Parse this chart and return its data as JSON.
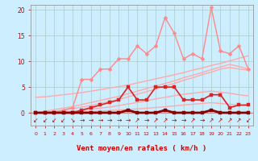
{
  "x": [
    0,
    1,
    2,
    3,
    4,
    5,
    6,
    7,
    8,
    9,
    10,
    11,
    12,
    13,
    14,
    15,
    16,
    17,
    18,
    19,
    20,
    21,
    22,
    23
  ],
  "background_color": "#cceeff",
  "grid_color": "#aacccc",
  "xlabel": "Vent moyen/en rafales ( km/h )",
  "xlabel_color": "#cc0000",
  "tick_color": "#cc0000",
  "ylim": [
    -2.5,
    21
  ],
  "xlim": [
    -0.5,
    23.5
  ],
  "yticks": [
    0,
    5,
    10,
    15,
    20
  ],
  "ytick_labels": [
    "0",
    "5",
    "10",
    "15",
    "20"
  ],
  "lines": [
    {
      "y": [
        3.0,
        3.1,
        3.3,
        3.5,
        3.7,
        3.9,
        4.2,
        4.5,
        4.8,
        5.1,
        5.4,
        5.8,
        6.2,
        6.6,
        7.0,
        7.4,
        7.8,
        8.3,
        8.7,
        9.2,
        9.6,
        10.1,
        10.6,
        11.1
      ],
      "color": "#ffaaaa",
      "linewidth": 1.0,
      "marker": null,
      "zorder": 2
    },
    {
      "y": [
        0.0,
        0.3,
        0.6,
        0.9,
        1.2,
        1.6,
        2.0,
        2.4,
        2.8,
        3.2,
        3.7,
        4.2,
        4.7,
        5.2,
        5.7,
        6.2,
        6.8,
        7.3,
        7.8,
        8.4,
        8.9,
        9.4,
        9.0,
        8.5
      ],
      "color": "#ffaaaa",
      "linewidth": 1.0,
      "marker": null,
      "zorder": 2
    },
    {
      "y": [
        0.0,
        0.1,
        0.3,
        0.5,
        0.8,
        1.1,
        1.4,
        1.8,
        2.2,
        2.6,
        3.1,
        3.6,
        4.1,
        4.6,
        5.2,
        5.7,
        6.3,
        6.8,
        7.4,
        7.9,
        8.5,
        8.8,
        8.5,
        8.3
      ],
      "color": "#ffaaaa",
      "linewidth": 1.0,
      "marker": null,
      "zorder": 2
    },
    {
      "y": [
        0.0,
        0.05,
        0.1,
        0.2,
        0.3,
        0.5,
        0.7,
        0.9,
        1.1,
        1.4,
        1.7,
        2.0,
        2.3,
        2.7,
        3.0,
        3.3,
        3.6,
        3.8,
        4.0,
        4.2,
        4.0,
        3.8,
        3.5,
        3.3
      ],
      "color": "#ffaaaa",
      "linewidth": 1.0,
      "marker": null,
      "zorder": 2
    },
    {
      "y": [
        0.0,
        0.02,
        0.05,
        0.08,
        0.12,
        0.18,
        0.25,
        0.33,
        0.42,
        0.52,
        0.63,
        0.75,
        0.88,
        1.02,
        1.17,
        1.33,
        1.5,
        1.65,
        1.8,
        1.95,
        1.8,
        1.65,
        1.5,
        1.4
      ],
      "color": "#ffaaaa",
      "linewidth": 1.0,
      "marker": null,
      "zorder": 2
    },
    {
      "y": [
        0.0,
        0.0,
        0.0,
        0.5,
        1.0,
        6.5,
        6.5,
        8.5,
        8.5,
        10.5,
        10.5,
        13.0,
        11.5,
        13.0,
        18.5,
        15.5,
        10.5,
        11.5,
        10.5,
        20.5,
        12.0,
        11.5,
        13.0,
        8.5
      ],
      "color": "#ff8888",
      "linewidth": 1.0,
      "marker": "D",
      "markersize": 2.5,
      "zorder": 3
    },
    {
      "y": [
        0.0,
        0.0,
        0.0,
        0.0,
        0.0,
        0.5,
        1.0,
        1.5,
        2.0,
        2.5,
        5.0,
        2.5,
        2.5,
        5.0,
        5.0,
        5.0,
        2.5,
        2.5,
        2.5,
        3.5,
        3.5,
        1.0,
        1.5,
        1.5
      ],
      "color": "#dd2222",
      "linewidth": 1.2,
      "marker": "s",
      "markersize": 2.5,
      "zorder": 4
    },
    {
      "y": [
        0.0,
        0.0,
        0.0,
        0.0,
        0.0,
        0.0,
        0.0,
        0.0,
        0.0,
        0.0,
        0.5,
        0.0,
        0.0,
        0.0,
        0.5,
        0.0,
        0.0,
        0.0,
        0.0,
        0.5,
        0.0,
        0.0,
        0.0,
        0.0
      ],
      "color": "#880000",
      "linewidth": 2.0,
      "marker": "s",
      "markersize": 2.5,
      "zorder": 5
    }
  ],
  "arrow_chars": [
    "↙",
    "↙",
    "↙",
    "↙",
    "↘",
    "→",
    "→",
    "→",
    "→",
    "→",
    "→",
    "↗",
    "→",
    "↗",
    "↗",
    "→",
    "→",
    "↗",
    "→",
    "↗",
    "↗",
    "↗",
    "↗",
    "↙"
  ],
  "arrow_color": "#cc0000",
  "arrow_fontsize": 5.5
}
